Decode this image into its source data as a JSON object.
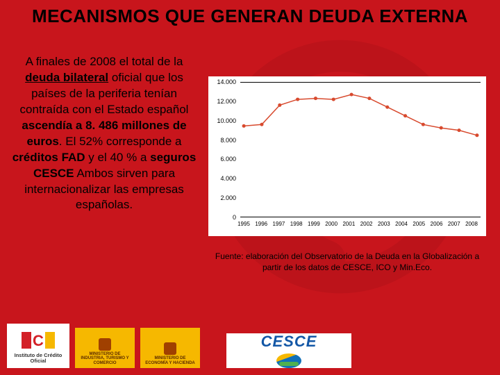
{
  "title": "MECANISMOS QUE GENERAN DEUDA EXTERNA",
  "paragraph": {
    "line1": "A finales de 2008 el total de la ",
    "underline_bold": "deuda bilateral",
    "line2": " oficial que los países de la periferia tenían contraída con el Estado español ",
    "bold1": "ascendía a 8. 486 millones de euros",
    "line3": ". El 52% corresponde a ",
    "bold2": "créditos FAD",
    "line4": " y el 40 % a ",
    "bold3": "seguros CESCE",
    "line5": " Ambos sirven para internacionalizar las empresas españolas."
  },
  "chart": {
    "type": "line",
    "background_color": "#ffffff",
    "line_color": "#d84a2e",
    "line_width": 1.5,
    "marker": "circle",
    "marker_size": 5,
    "marker_fill": "#d84a2e",
    "ylim": [
      0,
      14000
    ],
    "ytick_step": 2000,
    "yticks": [
      "0",
      "2.000",
      "4.000",
      "6.000",
      "8.000",
      "10.000",
      "12.000",
      "14.000"
    ],
    "xlabels": [
      "1995",
      "1996",
      "1997",
      "1998",
      "1999",
      "2000",
      "2001",
      "2002",
      "2003",
      "2004",
      "2005",
      "2006",
      "2007",
      "2008"
    ],
    "values": [
      9450,
      9600,
      11600,
      12200,
      12300,
      12200,
      12700,
      12300,
      11400,
      10500,
      9600,
      9250,
      9000,
      8486
    ],
    "tick_fontsize": 9,
    "xlabel_fontsize": 8
  },
  "source": "Fuente: elaboración del Observatorio de la Deuda en la Globalización a partir de los datos de CESCE, ICO y Min.Eco.",
  "logos": {
    "ico_caption": "Instituto de Crédito Oficial",
    "min1": "MINISTERIO DE INDUSTRIA, TURISMO Y COMERCIO",
    "min2": "MINISTERIO DE ECONOMÍA Y HACIENDA",
    "cesce": "CESCE"
  },
  "colors": {
    "page_bg": "#c8151c",
    "symbol": "#8a0d13"
  }
}
